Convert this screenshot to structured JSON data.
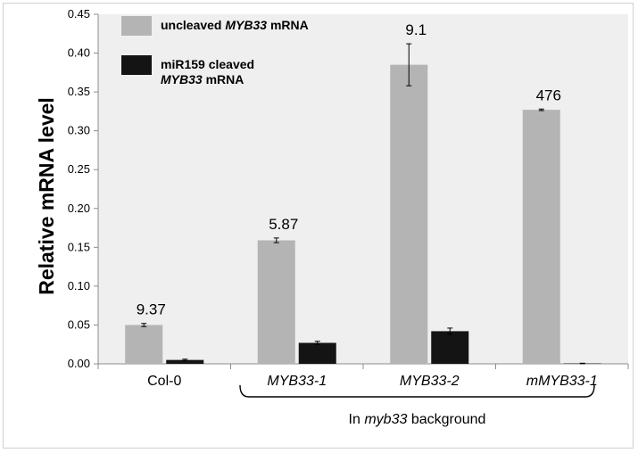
{
  "chart_data": {
    "type": "bar",
    "ylabel": "Relative mRNA level",
    "ylim": [
      0,
      0.45
    ],
    "yticks": [
      "0.00",
      "0.05",
      "0.10",
      "0.15",
      "0.20",
      "0.25",
      "0.30",
      "0.35",
      "0.40",
      "0.45"
    ],
    "grid": false,
    "legend_position": "top-left",
    "categories": [
      {
        "label": "Col-0",
        "italic": false
      },
      {
        "label": "MYB33-1",
        "italic": true
      },
      {
        "label": "MYB33-2",
        "italic": true
      },
      {
        "label": "mMYB33-1",
        "italic": true
      }
    ],
    "series": [
      {
        "color": "#b4b4b4",
        "legend": {
          "line1_pre": "uncleaved ",
          "line1_italic": "MYB33",
          "line1_post": " mRNA",
          "line2_italic": "",
          "line2_post": ""
        },
        "values": [
          0.05,
          0.159,
          0.385,
          0.327
        ],
        "errors": [
          0.002,
          0.003,
          0.027,
          0.001
        ]
      },
      {
        "color": "#141414",
        "legend": {
          "line1_pre": "miR159 cleaved",
          "line1_italic": "",
          "line1_post": "",
          "line2_italic": "MYB33",
          "line2_post": " mRNA"
        },
        "values": [
          0.005,
          0.027,
          0.042,
          0.0005
        ],
        "errors": [
          0.001,
          0.002,
          0.004,
          0.0003
        ]
      }
    ],
    "bar_labels": [
      "9.37",
      "5.87",
      "9.1",
      "476"
    ],
    "group_annotation": {
      "pre": "In ",
      "italic": "myb33",
      "post": " background"
    }
  }
}
